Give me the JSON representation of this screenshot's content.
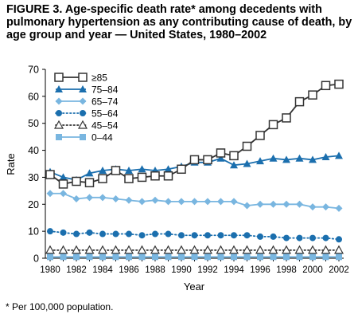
{
  "figure": {
    "title": "FIGURE 3. Age-specific death rate* among decedents with pulmonary hypertension as any contributing cause of death, by age group and year — United States, 1980–2002",
    "footnote": "* Per 100,000 population."
  },
  "chart_data": {
    "type": "line",
    "title": "FIGURE 3. Age-specific death rate* among decedents with pulmonary hypertension as any contributing cause of death, by age group and year — United States, 1980–2002",
    "xlabel": "Year",
    "ylabel": "Rate",
    "xlim": [
      1980,
      2002
    ],
    "ylim": [
      0,
      70
    ],
    "x_ticks": [
      1980,
      1982,
      1984,
      1986,
      1988,
      1990,
      1992,
      1994,
      1996,
      1998,
      2000,
      2002
    ],
    "y_ticks": [
      0,
      10,
      20,
      30,
      40,
      50,
      60,
      70
    ],
    "grid": false,
    "legend_position": "top-left",
    "x": [
      1980,
      1981,
      1982,
      1983,
      1984,
      1985,
      1986,
      1987,
      1988,
      1989,
      1990,
      1991,
      1992,
      1993,
      1994,
      1995,
      1996,
      1997,
      1998,
      1999,
      2000,
      2001,
      2002
    ],
    "series": [
      {
        "name": "≥85",
        "color": "#333333",
        "line_style": "solid",
        "marker": "open-square",
        "values": [
          31.0,
          27.5,
          28.5,
          28.0,
          29.5,
          32.5,
          29.5,
          30.0,
          30.5,
          30.5,
          33.0,
          36.5,
          36.5,
          39.0,
          38.0,
          41.5,
          45.5,
          49.5,
          52.0,
          58.0,
          60.5,
          64.0,
          64.5
        ]
      },
      {
        "name": "75–84",
        "color": "#1b6fae",
        "line_style": "solid",
        "marker": "filled-triangle",
        "values": [
          32.0,
          30.0,
          29.0,
          31.5,
          32.5,
          33.0,
          32.5,
          33.0,
          32.5,
          33.0,
          34.0,
          35.5,
          35.5,
          37.0,
          34.5,
          35.0,
          36.0,
          37.0,
          36.5,
          37.0,
          36.5,
          37.5,
          38.0
        ]
      },
      {
        "name": "65–74",
        "color": "#79b6e0",
        "line_style": "solid",
        "marker": "filled-diamond",
        "values": [
          24.0,
          24.0,
          22.0,
          22.5,
          22.5,
          22.0,
          21.5,
          21.0,
          21.5,
          21.0,
          21.0,
          21.0,
          21.0,
          21.0,
          21.0,
          19.5,
          20.0,
          20.0,
          20.0,
          20.0,
          19.0,
          19.0,
          18.5
        ]
      },
      {
        "name": "55–64",
        "color": "#1b6fae",
        "line_style": "dotted",
        "marker": "filled-circle",
        "values": [
          10.0,
          9.5,
          9.0,
          9.5,
          9.0,
          9.0,
          9.0,
          8.5,
          9.0,
          9.0,
          8.5,
          8.5,
          8.5,
          8.5,
          8.5,
          8.5,
          8.0,
          8.0,
          7.5,
          7.5,
          7.5,
          7.5,
          7.0
        ]
      },
      {
        "name": "45–54",
        "color": "#333333",
        "line_style": "dotted",
        "marker": "open-triangle",
        "values": [
          3.0,
          3.0,
          3.0,
          3.0,
          3.0,
          3.0,
          3.0,
          3.0,
          3.0,
          3.0,
          3.0,
          3.0,
          3.0,
          3.0,
          3.0,
          3.0,
          3.0,
          3.0,
          3.0,
          3.0,
          3.0,
          3.0,
          3.0
        ]
      },
      {
        "name": "0–44",
        "color": "#79b6e0",
        "line_style": "solid",
        "marker": "filled-square",
        "values": [
          0.5,
          0.5,
          0.5,
          0.5,
          0.5,
          0.5,
          0.5,
          0.5,
          0.5,
          0.5,
          0.5,
          0.5,
          0.5,
          0.5,
          0.5,
          0.5,
          0.5,
          0.5,
          0.5,
          0.5,
          0.5,
          0.5,
          0.5
        ]
      }
    ]
  }
}
